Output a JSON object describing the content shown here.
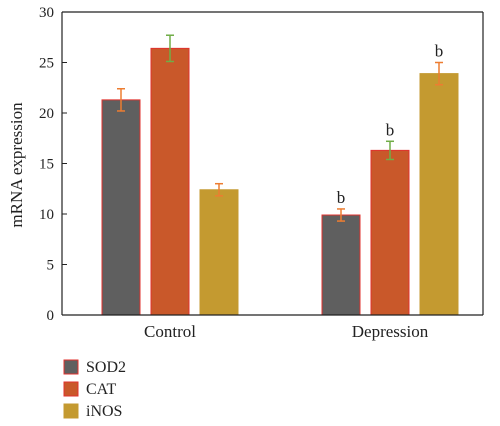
{
  "chart_data": {
    "type": "bar",
    "categories": [
      "Control",
      "Depression"
    ],
    "series": [
      {
        "name": "SOD2",
        "values": [
          21.3,
          9.9
        ],
        "errors": [
          1.1,
          0.6
        ],
        "color": "#5f5f5f",
        "edge": "#e0322e",
        "error_color": "#ed7d31",
        "labels": [
          "",
          "b"
        ]
      },
      {
        "name": "CAT",
        "values": [
          26.4,
          16.3
        ],
        "errors": [
          1.3,
          0.9
        ],
        "color": "#c9582a",
        "edge": "#e0322e",
        "error_color": "#70ad47",
        "labels": [
          "",
          "b"
        ]
      },
      {
        "name": "iNOS",
        "values": [
          12.4,
          23.9
        ],
        "errors": [
          0.6,
          1.1
        ],
        "color": "#c49a30",
        "edge": "#c49a30",
        "error_color": "#ed7d31",
        "labels": [
          "",
          "b"
        ]
      }
    ],
    "ylabel": "mRNA expression",
    "xlabel": "",
    "ylim": [
      0,
      30
    ],
    "yticks": [
      "0",
      "5",
      "10",
      "15",
      "20",
      "25",
      "30"
    ],
    "legend_position": "bottom-left",
    "grid": false
  }
}
